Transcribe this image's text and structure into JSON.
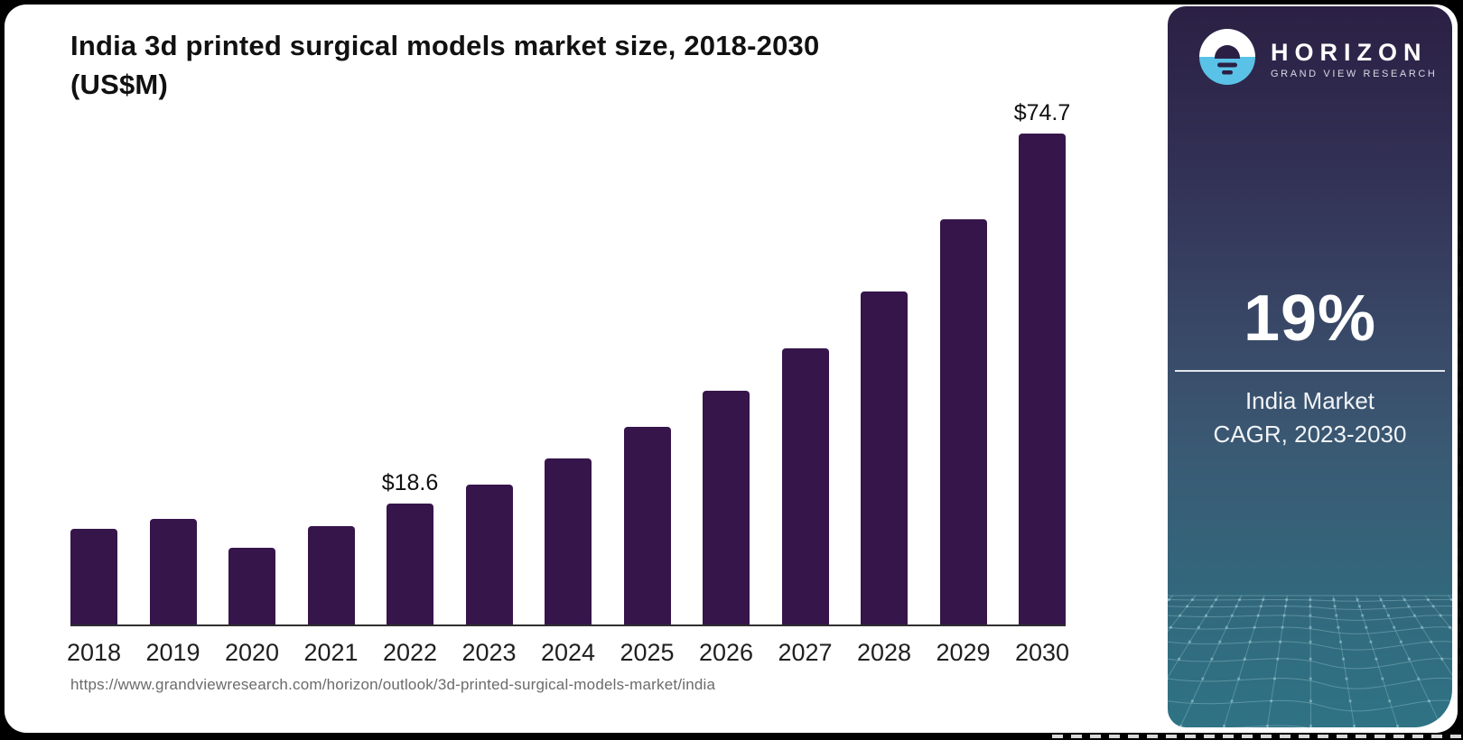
{
  "page": {
    "background": "#000000",
    "card_background": "#ffffff"
  },
  "header": {
    "title_line1": "India 3d printed surgical models market size, 2018-2030",
    "title_line2": "(US$M)"
  },
  "chart_data": {
    "type": "bar",
    "title": "India 3d printed surgical models market size, 2018-2030 (US$M)",
    "categories": [
      "2018",
      "2019",
      "2020",
      "2021",
      "2022",
      "2023",
      "2024",
      "2025",
      "2026",
      "2027",
      "2028",
      "2029",
      "2030"
    ],
    "values": [
      14.8,
      16.3,
      11.9,
      15.2,
      18.6,
      21.5,
      25.4,
      30.2,
      35.7,
      42.1,
      50.8,
      61.7,
      74.7
    ],
    "annotations": [
      {
        "category": "2022",
        "label": "$18.6"
      },
      {
        "category": "2030",
        "label": "$74.7"
      }
    ],
    "xlabel": "",
    "ylabel": "",
    "ylim": [
      0,
      80
    ],
    "grid": false,
    "legend": false,
    "bar_color": "#36154B",
    "axis_color": "#2f2f2f",
    "tick_label_color": "#1f1f1f"
  },
  "source": {
    "url": "https://www.grandviewresearch.com/horizon/outlook/3d-printed-surgical-models-market/india"
  },
  "sidebar": {
    "logo": {
      "icon": "horizon-sunset-icon",
      "brand": "HORIZON",
      "sub_brand": "GRAND VIEW RESEARCH",
      "icon_top_color": "#ffffff",
      "icon_bottom_color": "#5BC2E7",
      "icon_mark_color": "#2B2044"
    },
    "stat": {
      "value": "19%",
      "caption_line1": "India Market",
      "caption_line2": "CAGR, 2023-2030"
    },
    "gradient_top": "#2B2044",
    "gradient_bottom": "#2F7385",
    "mesh_color": "#A9D6DE"
  }
}
